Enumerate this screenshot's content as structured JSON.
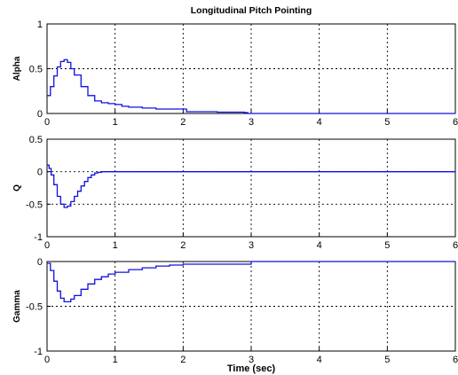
{
  "chart_data": [
    {
      "type": "line",
      "title": "Longitudinal Pitch Pointing",
      "ylabel": "Alpha",
      "xlabel": "",
      "xlim": [
        0,
        6
      ],
      "ylim": [
        0,
        1
      ],
      "xticks": [
        0,
        1,
        2,
        3,
        4,
        5,
        6
      ],
      "yticks": [
        0,
        0.5,
        1
      ],
      "ytick_labels": [
        "0",
        "0.5",
        "1"
      ],
      "grid": true,
      "series_color": "#1010e0",
      "x": [
        0,
        0.05,
        0.1,
        0.15,
        0.2,
        0.25,
        0.3,
        0.35,
        0.4,
        0.5,
        0.6,
        0.7,
        0.8,
        0.9,
        1.0,
        1.1,
        1.2,
        1.4,
        1.6,
        1.8,
        2.0,
        2.05,
        2.5,
        2.9,
        2.95,
        3.5,
        4,
        5,
        6
      ],
      "y": [
        0.2,
        0.3,
        0.42,
        0.52,
        0.58,
        0.6,
        0.57,
        0.5,
        0.43,
        0.3,
        0.2,
        0.14,
        0.12,
        0.11,
        0.1,
        0.08,
        0.07,
        0.06,
        0.05,
        0.05,
        0.05,
        0.02,
        0.015,
        0.01,
        0.0,
        0.0,
        0.0,
        0.0,
        0.0
      ]
    },
    {
      "type": "line",
      "title": "",
      "ylabel": "Q",
      "xlabel": "",
      "xlim": [
        0,
        6
      ],
      "ylim": [
        -1,
        0.5
      ],
      "xticks": [
        0,
        1,
        2,
        3,
        4,
        5,
        6
      ],
      "yticks": [
        -1,
        -0.5,
        0,
        0.5
      ],
      "ytick_labels": [
        "-1",
        "-0.5",
        "0",
        "0.5"
      ],
      "grid": true,
      "series_color": "#1010e0",
      "x": [
        0,
        0.03,
        0.06,
        0.1,
        0.15,
        0.2,
        0.25,
        0.3,
        0.35,
        0.4,
        0.45,
        0.5,
        0.55,
        0.6,
        0.65,
        0.7,
        0.75,
        0.8,
        1.0,
        2,
        3,
        4,
        5,
        6
      ],
      "y": [
        0.1,
        0.05,
        -0.05,
        -0.2,
        -0.38,
        -0.5,
        -0.55,
        -0.53,
        -0.46,
        -0.38,
        -0.3,
        -0.22,
        -0.15,
        -0.09,
        -0.05,
        -0.02,
        -0.01,
        0.0,
        0.0,
        0.0,
        0.0,
        0.0,
        0.0,
        0.0
      ]
    },
    {
      "type": "line",
      "title": "",
      "ylabel": "Gamma",
      "xlabel": "Time (sec)",
      "xlim": [
        0,
        6
      ],
      "ylim": [
        -1,
        0
      ],
      "xticks": [
        0,
        1,
        2,
        3,
        4,
        5,
        6
      ],
      "yticks": [
        -1,
        -0.5,
        0
      ],
      "ytick_labels": [
        "-1",
        "-0.5",
        "0"
      ],
      "grid": true,
      "series_color": "#1010e0",
      "x": [
        0,
        0.05,
        0.1,
        0.15,
        0.2,
        0.25,
        0.3,
        0.35,
        0.4,
        0.5,
        0.6,
        0.7,
        0.8,
        0.9,
        1.0,
        1.2,
        1.4,
        1.6,
        1.8,
        2.0,
        2.5,
        2.95,
        3.0,
        4,
        5,
        6
      ],
      "y": [
        -0.02,
        -0.1,
        -0.22,
        -0.33,
        -0.41,
        -0.45,
        -0.45,
        -0.42,
        -0.38,
        -0.31,
        -0.25,
        -0.2,
        -0.17,
        -0.14,
        -0.12,
        -0.09,
        -0.07,
        -0.05,
        -0.04,
        -0.03,
        -0.03,
        -0.03,
        0.0,
        0.0,
        0.0,
        0.0
      ]
    }
  ]
}
